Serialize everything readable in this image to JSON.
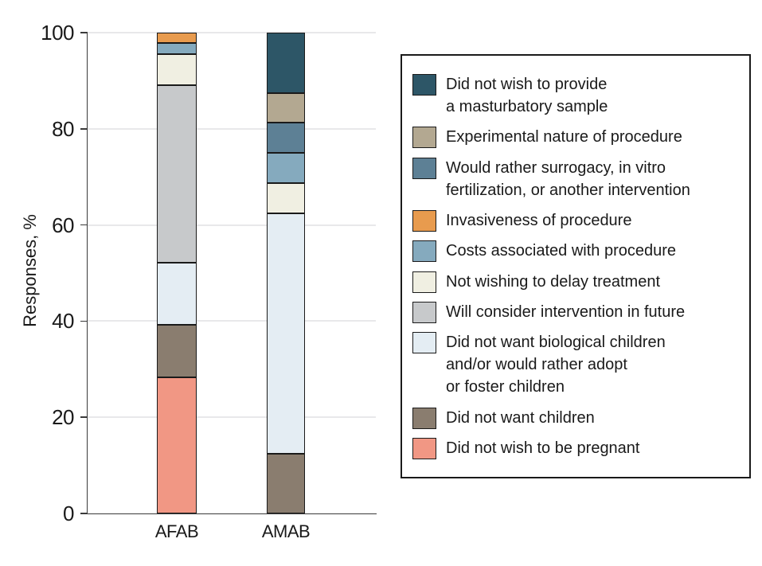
{
  "figure": {
    "background": "#ffffff",
    "axis_color": "#3a3a3a",
    "gridline_color": "#e8e8ea",
    "segment_border_color": "#1a1a1a"
  },
  "chart_data": {
    "type": "bar",
    "stacked": true,
    "title": "",
    "xlabel": "",
    "ylabel": "Responses, %",
    "ylim": [
      0,
      100
    ],
    "yticks": [
      0,
      20,
      40,
      60,
      80,
      100
    ],
    "grid": "horizontal",
    "legend_position": "right",
    "categories": [
      "AFAB",
      "AMAB"
    ],
    "series": [
      {
        "name": "Did not wish to be pregnant",
        "color": "#f19784",
        "values": [
          28.3,
          0
        ]
      },
      {
        "name": "Did not want children",
        "color": "#8a7d6f",
        "values": [
          10.9,
          12.5
        ]
      },
      {
        "name": "Did not want biological children and/or would rather adopt or foster children",
        "color": "#e4edf3",
        "values": [
          13.0,
          50.0
        ]
      },
      {
        "name": "Will consider intervention in future",
        "color": "#c7c9cb",
        "values": [
          37.0,
          0
        ]
      },
      {
        "name": "Not wishing to delay treatment",
        "color": "#f0efe2",
        "values": [
          6.5,
          6.25
        ]
      },
      {
        "name": "Costs associated with procedure",
        "color": "#85aabe",
        "values": [
          2.2,
          6.25
        ]
      },
      {
        "name": "Invasiveness of procedure",
        "color": "#e89b4e",
        "values": [
          2.2,
          0
        ]
      },
      {
        "name": "Would rather surrogacy, in vitro fertilization, or another intervention",
        "color": "#5d8095",
        "values": [
          0,
          6.25
        ]
      },
      {
        "name": "Experimental nature of procedure",
        "color": "#b3a891",
        "values": [
          0,
          6.25
        ]
      },
      {
        "name": "Did not wish to provide a masturbatory sample",
        "color": "#2d5667",
        "values": [
          0,
          12.5
        ]
      }
    ],
    "legend": [
      {
        "label": "Did not wish to provide\na masturbatory sample",
        "color": "#2d5667"
      },
      {
        "label": "Experimental nature of procedure",
        "color": "#b3a891"
      },
      {
        "label": "Would rather surrogacy, in vitro\nfertilization, or another intervention",
        "color": "#5d8095"
      },
      {
        "label": "Invasiveness of procedure",
        "color": "#e89b4e"
      },
      {
        "label": "Costs associated with procedure",
        "color": "#85aabe"
      },
      {
        "label": "Not wishing to delay treatment",
        "color": "#f0efe2"
      },
      {
        "label": "Will consider intervention in future",
        "color": "#c7c9cb"
      },
      {
        "label": "Did not want biological children\nand/or would rather adopt\nor foster children",
        "color": "#e4edf3"
      },
      {
        "label": "Did not want children",
        "color": "#8a7d6f"
      },
      {
        "label": "Did not wish to be pregnant",
        "color": "#f19784"
      }
    ]
  }
}
